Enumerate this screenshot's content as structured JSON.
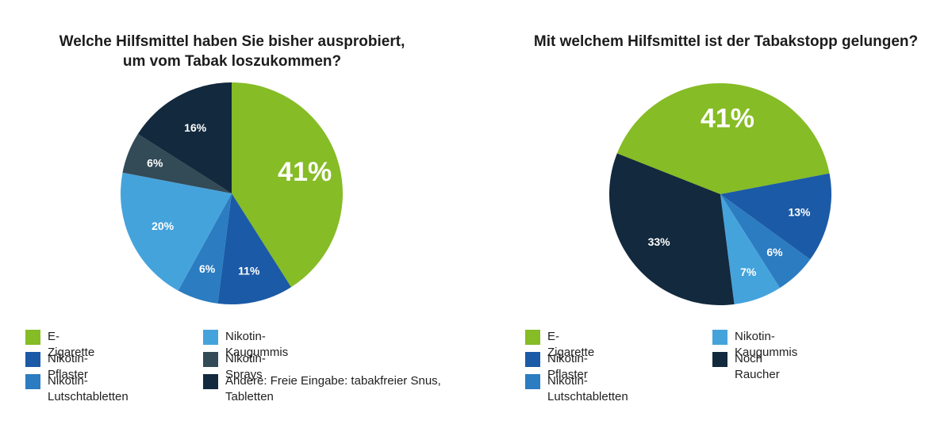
{
  "chart_data": [
    {
      "type": "pie",
      "title": [
        "Welche Hilfsmittel haben Sie bisher ausprobiert,",
        "um vom Tabak loszukommen?"
      ],
      "categories": [
        "E-Zigarette",
        "Nikotin-Pflaster",
        "Nikotin-Lutschtabletten",
        "Nikotin-Kaugummis",
        "Nikotin-Sprays",
        "Andere: Freie Eingabe: tabakfreier Snus, Tabletten"
      ],
      "values": [
        41,
        11,
        6,
        20,
        6,
        16
      ],
      "labels": [
        "41%",
        "11%",
        "6%",
        "20%",
        "6%",
        "16%"
      ],
      "colors": [
        "#86bc25",
        "#1b5aa6",
        "#2b7cc0",
        "#45a3dc",
        "#334a57",
        "#13293d"
      ],
      "legend_position": "bottom"
    },
    {
      "type": "pie",
      "title": [
        "Mit welchem Hilfsmittel ist der Tabakstopp gelungen?"
      ],
      "categories": [
        "E-Zigarette",
        "Nikotin-Pflaster",
        "Nikotin-Lutschtabletten",
        "Nikotin-Kaugummis",
        "Noch Raucher"
      ],
      "values": [
        41,
        13,
        6,
        7,
        33
      ],
      "labels": [
        "41%",
        "13%",
        "6%",
        "7%",
        "33%"
      ],
      "colors": [
        "#86bc25",
        "#1b5aa6",
        "#2b7cc0",
        "#45a3dc",
        "#13293d"
      ],
      "legend_position": "bottom"
    }
  ]
}
